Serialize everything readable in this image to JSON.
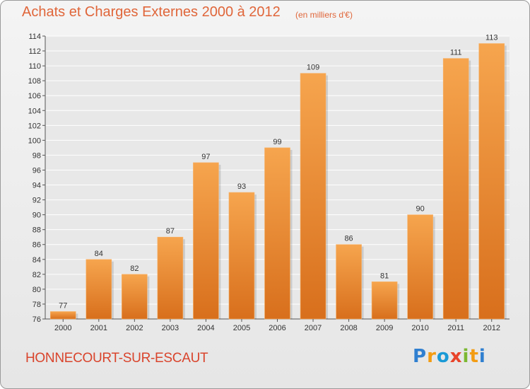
{
  "header": {
    "title": "Achats et Charges Externes 2000 à 2012",
    "subtitle": "(en milliers d'€)"
  },
  "footer": {
    "town": "HONNECOURT-SUR-ESCAUT",
    "logo_letters": [
      {
        "char": "P",
        "color": "#2f7fd0"
      },
      {
        "char": "r",
        "color": "#f39c12"
      },
      {
        "char": "o",
        "color": "#1a9ad6"
      },
      {
        "char": "x",
        "color": "#e8442a"
      },
      {
        "char": "i",
        "color": "#7cb832"
      },
      {
        "char": "t",
        "color": "#f39c12"
      },
      {
        "char": "i",
        "color": "#2f7fd0"
      }
    ]
  },
  "colors": {
    "bar_top": "#f6a54e",
    "bar_bottom": "#d86f1c",
    "grid": "#ffffff",
    "plot_bg": "#e8e8e8"
  },
  "chart_data": {
    "type": "bar",
    "title": "Achats et Charges Externes 2000 à 2012",
    "subtitle": "(en milliers d'€)",
    "categories": [
      "2000",
      "2001",
      "2002",
      "2003",
      "2004",
      "2005",
      "2006",
      "2007",
      "2008",
      "2009",
      "2010",
      "2011",
      "2012"
    ],
    "values": [
      77,
      84,
      82,
      87,
      97,
      93,
      99,
      109,
      86,
      81,
      90,
      111,
      113
    ],
    "ylim": [
      76,
      114
    ],
    "yticks": [
      76,
      78,
      80,
      82,
      84,
      86,
      88,
      90,
      92,
      94,
      96,
      98,
      100,
      102,
      104,
      106,
      108,
      110,
      112,
      114
    ],
    "grid": true,
    "data_labels": true
  }
}
